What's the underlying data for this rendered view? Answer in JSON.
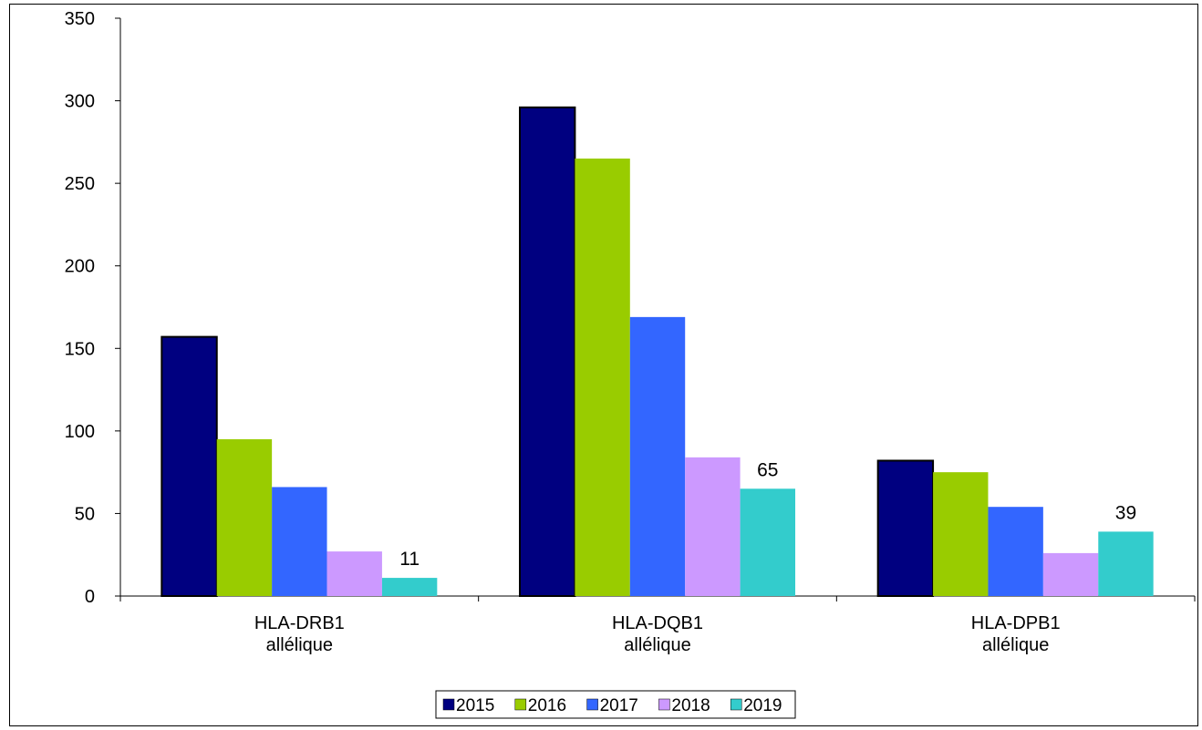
{
  "chart_data": {
    "type": "bar",
    "title": "",
    "xlabel": "",
    "ylabel": "",
    "ylim": [
      0,
      350
    ],
    "yticks": [
      0,
      50,
      100,
      150,
      200,
      250,
      300,
      350
    ],
    "grid": false,
    "legend_position": "bottom",
    "categories": [
      [
        "HLA-DRB1",
        "allélique"
      ],
      [
        "HLA-DQB1",
        "allélique"
      ],
      [
        "HLA-DPB1",
        "allélique"
      ]
    ],
    "series": [
      {
        "name": "2015",
        "color": "#000080",
        "values": [
          157,
          296,
          82
        ]
      },
      {
        "name": "2016",
        "color": "#99cc00",
        "values": [
          95,
          265,
          75
        ]
      },
      {
        "name": "2017",
        "color": "#3366ff",
        "values": [
          66,
          169,
          54
        ]
      },
      {
        "name": "2018",
        "color": "#cc99ff",
        "values": [
          27,
          84,
          26
        ]
      },
      {
        "name": "2019",
        "color": "#33cccc",
        "values": [
          11,
          65,
          39
        ]
      }
    ],
    "data_labels": [
      {
        "series": "2019",
        "category": 0,
        "text": "11"
      },
      {
        "series": "2019",
        "category": 1,
        "text": "65"
      },
      {
        "series": "2019",
        "category": 2,
        "text": "39"
      }
    ]
  }
}
